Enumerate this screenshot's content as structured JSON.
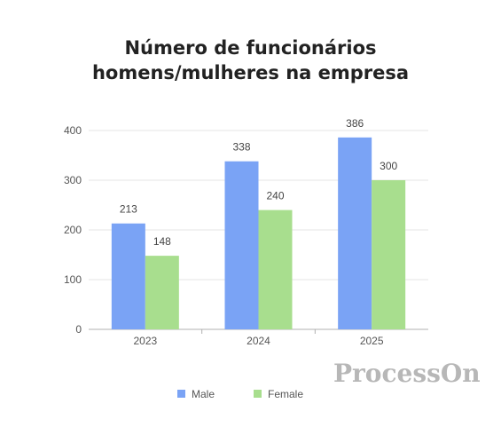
{
  "chart_data": {
    "type": "bar",
    "title_lines": [
      "Número de funcionários",
      "homens/mulheres na empresa"
    ],
    "categories": [
      "2023",
      "2024",
      "2025"
    ],
    "series": [
      {
        "name": "Male",
        "values": [
          213,
          338,
          386
        ],
        "color": "#7aa3f5"
      },
      {
        "name": "Female",
        "values": [
          148,
          240,
          300
        ],
        "color": "#a8de8e"
      }
    ],
    "ylim": [
      0,
      400
    ],
    "yticks": [
      0,
      100,
      200,
      300,
      400
    ],
    "grid": true,
    "data_labels": true,
    "legend": "bottom-center"
  },
  "watermark": "ProcessOn"
}
